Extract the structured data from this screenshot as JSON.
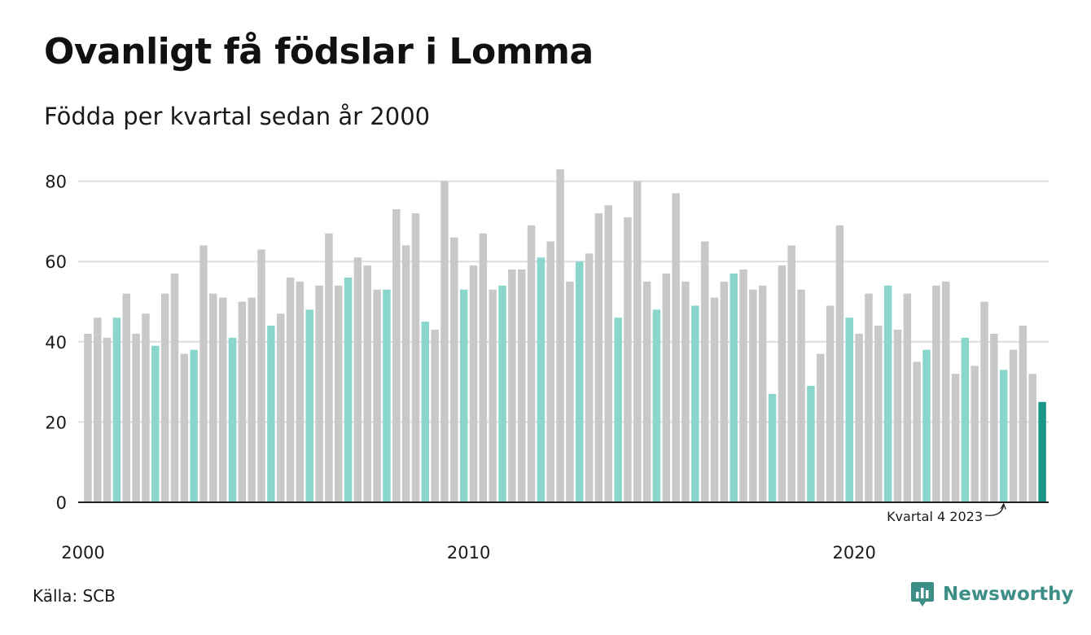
{
  "title": "Ovanligt få födslar i Lomma",
  "subtitle": "Födda per kvartal sedan år 2000",
  "source": "Källa: SCB",
  "brand": {
    "name": "Newsworthy",
    "icon": "newsworthy-logo-icon"
  },
  "colors": {
    "default": "#c8c8c8",
    "highlight": "#8ad5cc",
    "latest": "#1a9688",
    "grid": "#dddddd",
    "axis": "#222222"
  },
  "chart_data": {
    "type": "bar",
    "start_year": 2000,
    "start_quarter": 1,
    "highlight_quarter": 4,
    "values": [
      42,
      46,
      41,
      46,
      52,
      42,
      47,
      39,
      52,
      57,
      37,
      38,
      64,
      52,
      51,
      41,
      50,
      51,
      63,
      44,
      47,
      56,
      55,
      48,
      54,
      67,
      54,
      56,
      61,
      59,
      53,
      53,
      73,
      64,
      72,
      45,
      43,
      80,
      66,
      53,
      59,
      67,
      53,
      54,
      58,
      58,
      69,
      61,
      65,
      83,
      55,
      60,
      62,
      72,
      74,
      46,
      71,
      80,
      55,
      48,
      57,
      77,
      55,
      49,
      65,
      51,
      55,
      57,
      58,
      53,
      54,
      27,
      59,
      64,
      53,
      29,
      37,
      49,
      69,
      46,
      42,
      52,
      44,
      54,
      43,
      52,
      35,
      38,
      54,
      55,
      32,
      41,
      34,
      50,
      42,
      33,
      38,
      44,
      32,
      25
    ],
    "ylim": [
      0,
      85
    ],
    "yticks": [
      0,
      20,
      40,
      60,
      80
    ],
    "xtick_labels": [
      "2000",
      "2010",
      "2020"
    ],
    "xlabel": "",
    "ylabel": "",
    "annotation": {
      "text": "Kvartal 4 2023",
      "year": 2023,
      "quarter": 4
    }
  }
}
